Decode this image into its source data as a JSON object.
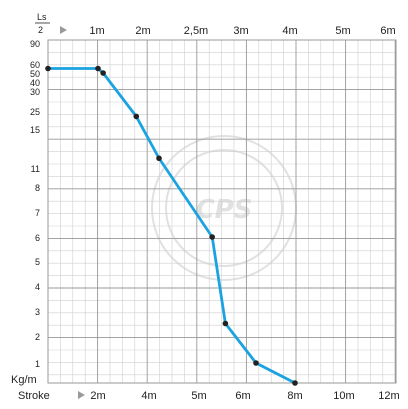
{
  "chart_data": {
    "type": "line",
    "top_axis": {
      "label_top": "Ls",
      "label_bottom": "2",
      "arrow_icon": "triangle-right-icon",
      "ticks": [
        "1m",
        "2m",
        "2,5m",
        "3m",
        "4m",
        "5m",
        "6m"
      ]
    },
    "bottom_axis": {
      "label": "Stroke",
      "arrow_icon": "triangle-right-icon",
      "ticks": [
        "2m",
        "4m",
        "5m",
        "6m",
        "8m",
        "10m",
        "12m"
      ]
    },
    "y_axis": {
      "label": "Kg/m",
      "ticks": [
        "90",
        "60",
        "50",
        "40",
        "30",
        "25",
        "15",
        "11",
        "8",
        "7",
        "6",
        "5",
        "4",
        "3",
        "2",
        "1"
      ]
    },
    "series": [
      {
        "color": "#1aa3e0",
        "points": [
          {
            "x_stroke": "0m",
            "y": "55"
          },
          {
            "x_stroke": "2m",
            "y": "55"
          },
          {
            "x_stroke": "2.2m",
            "y": "50"
          },
          {
            "x_stroke": "3.5m",
            "y": "22"
          },
          {
            "x_stroke": "4.2m",
            "y": "12"
          },
          {
            "x_stroke": "5.3m",
            "y": "6"
          },
          {
            "x_stroke": "5.6m",
            "y": "2.5"
          },
          {
            "x_stroke": "6.5m",
            "y": "1"
          },
          {
            "x_stroke": "8m",
            "y": "0.5"
          }
        ]
      }
    ],
    "grid": true
  },
  "watermark": {
    "text": "CPS"
  },
  "colors": {
    "line": "#1aa3e0",
    "grid_minor": "#cfcfcf",
    "grid_major": "#9a9a9a",
    "point": "#222222"
  }
}
